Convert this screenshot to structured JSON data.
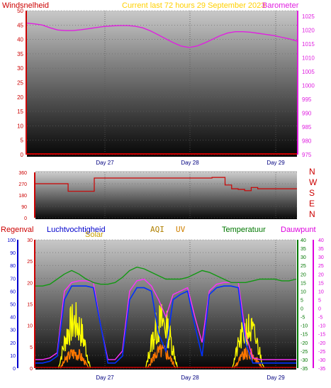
{
  "header": {
    "left_label": "Windsnelheid",
    "center_label": "Current last 72 hours 29 September 2023",
    "right_label": "Barometer"
  },
  "mid_headers": {
    "regenval": "Regenval",
    "luchtvochtigheid": "Luchtvochtigheid",
    "solar": "Solar",
    "aqi": "AQI",
    "uv": "UV",
    "temperatuur": "Temperatuur",
    "dauwpunt": "Dauwpunt"
  },
  "compass": [
    "N",
    "W",
    "S",
    "E",
    "N"
  ],
  "colors": {
    "windsnelheid": "#cc0000",
    "barometer": "#e020e0",
    "title": "#ffd000",
    "regenval": "#cc0000",
    "luchtvochtigheid": "#0000cc",
    "aqi": "#b08000",
    "uv": "#d08000",
    "temperatuur": "#007700",
    "dauwpunt": "#dd00dd",
    "solar": "#ffff00",
    "humidity_line": "#0030ff",
    "temp_line": "#119911",
    "dew_line": "#ff30ff",
    "uv_line": "#ff7700",
    "wind_dir": "#cc0000"
  },
  "chart_data": [
    {
      "type": "line",
      "name": "wind-barometer",
      "x_ticks": [
        "Day 27",
        "Day 28",
        "Day 29"
      ],
      "left_axis": {
        "label": "Windsnelheid",
        "ylim": [
          0,
          50
        ],
        "ticks": [
          0,
          5,
          10,
          15,
          20,
          25,
          30,
          35,
          40,
          45,
          50
        ]
      },
      "right_axis": {
        "label": "Barometer",
        "ylim": [
          975,
          1027
        ],
        "ticks": [
          975,
          980,
          985,
          990,
          995,
          1000,
          1005,
          1010,
          1015,
          1020,
          1025
        ]
      },
      "series": [
        {
          "name": "Barometer",
          "axis": "right",
          "values": [
            1022.5,
            1022.2,
            1021.8,
            1020.8,
            1020.0,
            1019.8,
            1019.8,
            1020.1,
            1020.5,
            1020.9,
            1021.3,
            1021.5,
            1021.6,
            1021.6,
            1021.4,
            1020.8,
            1019.7,
            1018.3,
            1016.8,
            1015.4,
            1014.2,
            1013.7,
            1014.2,
            1015.3,
            1016.6,
            1017.9,
            1018.9,
            1019.4,
            1019.4,
            1019.2,
            1018.8,
            1018.4,
            1018.0,
            1017.4,
            1016.8,
            1016.0
          ]
        },
        {
          "name": "Windsnelheid",
          "axis": "left",
          "values": [
            0,
            0,
            0,
            0,
            0,
            0,
            0,
            0,
            0,
            0,
            0,
            0,
            0,
            0,
            0,
            0,
            0,
            0,
            0,
            0,
            0,
            0,
            0,
            0,
            0,
            0,
            0,
            0,
            0,
            0,
            0,
            0,
            0,
            0,
            0,
            0
          ]
        }
      ]
    },
    {
      "type": "line",
      "name": "wind-direction",
      "ylim": [
        0,
        360
      ],
      "ticks": [
        0,
        90,
        180,
        270,
        360
      ],
      "series": [
        {
          "name": "Wind direction",
          "values": [
            270,
            270,
            270,
            270,
            270,
            210,
            210,
            210,
            210,
            315,
            315,
            315,
            315,
            315,
            315,
            315,
            315,
            315,
            315,
            315,
            315,
            315,
            315,
            315,
            315,
            315,
            315,
            320,
            320,
            260,
            230,
            225,
            215,
            240,
            230,
            230,
            230,
            230,
            230,
            230,
            230
          ]
        }
      ]
    },
    {
      "type": "line",
      "name": "rain-humidity-temperature",
      "x_ticks": [
        "Day 27",
        "Day 28",
        "Day 29"
      ],
      "axes": {
        "regenval": {
          "ylim": [
            0,
            100
          ],
          "ticks": [
            0,
            10,
            20,
            30,
            40,
            50,
            60,
            70,
            80,
            90,
            100
          ]
        },
        "luchtvochtigheid": {
          "ylim": [
            0,
            30
          ],
          "ticks": [
            0,
            5,
            10,
            15,
            20,
            25,
            30
          ]
        },
        "temperatuur": {
          "ylim": [
            -35,
            40
          ],
          "ticks": [
            -35,
            -30,
            -25,
            -20,
            -15,
            -10,
            -5,
            0,
            5,
            10,
            15,
            20,
            25,
            30,
            35,
            40
          ]
        },
        "dauwpunt": {
          "ylim": [
            -35,
            40
          ],
          "ticks": [
            -35,
            -30,
            -25,
            -20,
            -15,
            -10,
            -5,
            0,
            5,
            10,
            15,
            20,
            25,
            30,
            35,
            40
          ]
        }
      },
      "series": [
        {
          "name": "Temperatuur",
          "axis": "temperatuur",
          "values": [
            13,
            13,
            14,
            17,
            20,
            22,
            20,
            17,
            15,
            14,
            14,
            15,
            18,
            22,
            24,
            23,
            21,
            19,
            17,
            17,
            17,
            18,
            20,
            22,
            21,
            19,
            17,
            15,
            15,
            15,
            16,
            17,
            17,
            17,
            16,
            16,
            17
          ]
        },
        {
          "name": "Dauwpunt",
          "axis": "temperatuur",
          "values": [
            -30,
            -30,
            -29,
            -26,
            10,
            15,
            16,
            16,
            15,
            -10,
            -30,
            -30,
            -25,
            10,
            16,
            17,
            13,
            5,
            -5,
            8,
            10,
            12,
            -5,
            -20,
            10,
            14,
            15,
            15,
            15,
            -15,
            -29,
            -30,
            -30,
            -30,
            -30,
            -30,
            -30
          ]
        },
        {
          "name": "Luchtvochtigheid",
          "axis": "temperatuur",
          "values": [
            -32,
            -32,
            -31,
            -28,
            5,
            13,
            13,
            13,
            12,
            -10,
            -32,
            -32,
            -28,
            5,
            12,
            12,
            10,
            -15,
            -25,
            5,
            8,
            10,
            -10,
            -28,
            8,
            12,
            13,
            13,
            12,
            -20,
            -32,
            -32,
            -32,
            -32,
            -32,
            -32,
            -32
          ]
        },
        {
          "name": "Regenval",
          "axis": "regenval",
          "values": [
            0,
            0,
            0,
            0,
            0,
            0,
            0,
            0,
            0,
            0,
            0,
            0,
            0,
            0,
            0,
            0,
            0,
            0,
            0,
            0,
            0,
            0,
            0,
            0,
            0,
            0,
            0,
            0,
            0,
            0,
            0,
            0,
            0,
            0,
            0,
            0,
            0
          ]
        }
      ],
      "series_note": "Solar (yellow) and UV (orange) shown as daytime peaks"
    }
  ]
}
